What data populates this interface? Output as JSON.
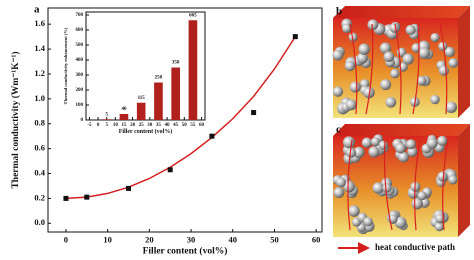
{
  "chart_data": [
    {
      "type": "scatter",
      "panel_label": "a",
      "x_label": "Filler content (vol%)",
      "y_label": "Thermal conductivity (Wm⁻¹K⁻¹)",
      "x": [
        0,
        5,
        15,
        25,
        35,
        45,
        55
      ],
      "values": [
        0.2,
        0.21,
        0.28,
        0.43,
        0.7,
        0.89,
        1.5
      ],
      "color": "#111111",
      "fit": {
        "x": [
          0,
          5,
          10,
          15,
          20,
          25,
          30,
          35,
          40,
          45,
          50,
          55
        ],
        "values": [
          0.2,
          0.21,
          0.24,
          0.29,
          0.36,
          0.45,
          0.56,
          0.69,
          0.84,
          1.02,
          1.24,
          1.5
        ],
        "color": "#d62020"
      },
      "xlim": [
        -4.3,
        61.4
      ],
      "xticks": [
        0,
        10,
        20,
        30,
        40,
        50,
        60
      ],
      "ylim": [
        -0.07,
        1.73
      ],
      "yticks": [
        {
          "value": 0,
          "label": "0.0"
        },
        0.2,
        0.4,
        0.6,
        0.8,
        {
          "value": 1,
          "label": "1.0"
        },
        1.2,
        1.4,
        1.6
      ]
    },
    {
      "type": "bar",
      "x_label": "Filler content (vol%)",
      "y_label": "Thermal conductivity enhancement (%)",
      "x": [
        5,
        15,
        25,
        35,
        45,
        55
      ],
      "values": [
        5,
        40,
        115,
        250,
        350,
        665
      ],
      "color": "#b0201c",
      "xlim": [
        -7,
        62
      ],
      "xticks": [
        -5,
        0,
        5,
        10,
        15,
        20,
        25,
        30,
        35,
        40,
        45,
        50,
        55,
        60
      ],
      "ylim": [
        0,
        720
      ],
      "yticks": [
        0,
        100,
        200,
        300,
        400,
        500,
        600,
        700
      ]
    }
  ],
  "panels": {
    "b": "b",
    "c": "c"
  },
  "legend": "heat conductive path"
}
